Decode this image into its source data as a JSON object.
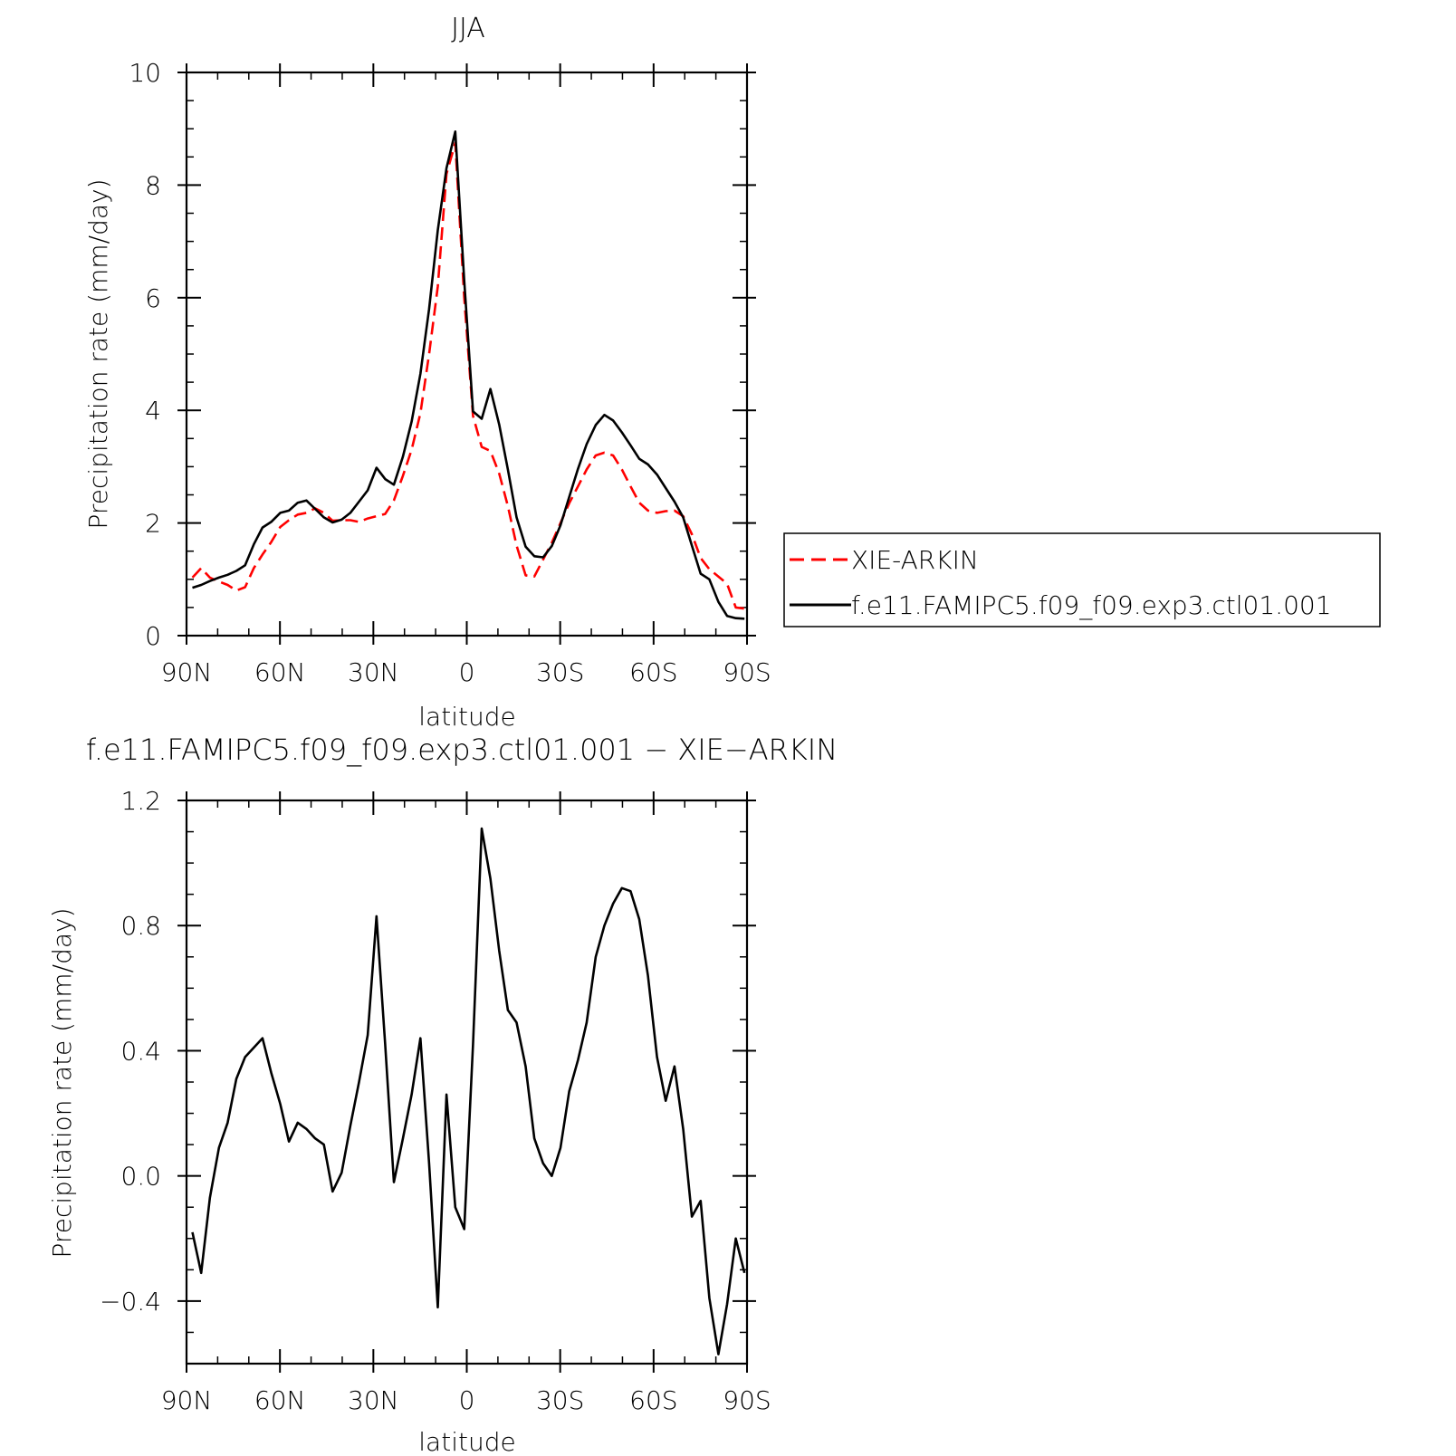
{
  "chart_data": [
    {
      "type": "line",
      "title": "JJA",
      "xlabel": "latitude",
      "ylabel": "Precipitation rate (mm/day)",
      "x_tick_labels": [
        "90N",
        "60N",
        "30N",
        "0",
        "30S",
        "60S",
        "90S"
      ],
      "x_ticks": [
        90,
        60,
        30,
        0,
        -30,
        -60,
        -90
      ],
      "xlim": [
        90,
        -90
      ],
      "y_tick_labels": [
        "0",
        "2",
        "4",
        "6",
        "8",
        "10"
      ],
      "y_ticks": [
        0,
        2,
        4,
        6,
        8,
        10
      ],
      "ylim": [
        0,
        10
      ],
      "grid": false,
      "legend_position": "right",
      "x": [
        88.1,
        85.3,
        82.5,
        79.6,
        76.8,
        74.0,
        71.2,
        68.4,
        65.6,
        62.8,
        59.9,
        57.1,
        54.3,
        51.5,
        48.7,
        45.9,
        43.1,
        40.2,
        37.4,
        34.6,
        31.8,
        29.0,
        26.2,
        23.4,
        20.5,
        17.7,
        14.9,
        12.1,
        9.3,
        6.5,
        3.7,
        0.8,
        -2.0,
        -4.8,
        -7.6,
        -10.4,
        -13.2,
        -16.0,
        -18.9,
        -21.7,
        -24.5,
        -27.3,
        -30.1,
        -32.9,
        -35.7,
        -38.5,
        -41.4,
        -44.2,
        -47.0,
        -49.8,
        -52.6,
        -55.4,
        -58.2,
        -61.1,
        -63.9,
        -66.7,
        -69.5,
        -72.3,
        -75.1,
        -77.9,
        -80.8,
        -83.6,
        -86.4,
        -89.2
      ],
      "series": [
        {
          "name": "XIE-ARKIN",
          "color": "#ff0000",
          "dash": "dashed",
          "values": [
            1.03,
            1.2,
            1.03,
            0.96,
            0.9,
            0.8,
            0.86,
            1.2,
            1.44,
            1.66,
            1.93,
            2.05,
            2.15,
            2.18,
            2.26,
            2.18,
            2.04,
            2.05,
            2.05,
            2.02,
            2.08,
            2.12,
            2.16,
            2.4,
            2.84,
            3.3,
            3.95,
            5.0,
            6.2,
            8.2,
            8.75,
            6.0,
            3.9,
            3.35,
            3.28,
            2.88,
            2.3,
            1.6,
            1.07,
            1.05,
            1.35,
            1.65,
            2.0,
            2.35,
            2.65,
            2.95,
            3.2,
            3.25,
            3.2,
            2.95,
            2.65,
            2.36,
            2.22,
            2.18,
            2.21,
            2.22,
            2.12,
            1.8,
            1.38,
            1.18,
            1.05,
            0.92,
            0.5,
            0.48
          ]
        },
        {
          "name": "f.e11.FAMIPC5.f09_f09.exp3.ctl01.001",
          "color": "#000000",
          "dash": "solid",
          "values": [
            0.85,
            0.9,
            0.97,
            1.03,
            1.08,
            1.15,
            1.25,
            1.62,
            1.92,
            2.02,
            2.18,
            2.22,
            2.36,
            2.4,
            2.25,
            2.1,
            2.01,
            2.06,
            2.18,
            2.38,
            2.58,
            2.98,
            2.78,
            2.68,
            3.18,
            3.8,
            4.65,
            5.8,
            7.2,
            8.3,
            8.95,
            6.3,
            3.98,
            3.85,
            4.38,
            3.75,
            2.95,
            2.1,
            1.58,
            1.41,
            1.39,
            1.59,
            1.96,
            2.46,
            2.96,
            3.4,
            3.74,
            3.92,
            3.82,
            3.61,
            3.38,
            3.14,
            3.04,
            2.86,
            2.62,
            2.38,
            2.1,
            1.6,
            1.1,
            1.0,
            0.6,
            0.35,
            0.31,
            0.3
          ]
        }
      ]
    },
    {
      "type": "line",
      "title": "f.e11.FAMIPC5.f09_f09.exp3.ctl01.001 − XIE−ARKIN",
      "xlabel": "latitude",
      "ylabel": "Precipitation rate (mm/day)",
      "x_tick_labels": [
        "90N",
        "60N",
        "30N",
        "0",
        "30S",
        "60S",
        "90S"
      ],
      "x_ticks": [
        90,
        60,
        30,
        0,
        -30,
        -60,
        -90
      ],
      "xlim": [
        90,
        -90
      ],
      "y_tick_labels": [
        "−0.4",
        "0.0",
        "0.4",
        "0.8",
        "1.2"
      ],
      "y_ticks": [
        -0.4,
        0.0,
        0.4,
        0.8,
        1.2
      ],
      "ylim": [
        -0.6,
        1.2
      ],
      "grid": false,
      "x": [
        88.1,
        85.3,
        82.5,
        79.6,
        76.8,
        74.0,
        71.2,
        68.4,
        65.6,
        62.8,
        59.9,
        57.1,
        54.3,
        51.5,
        48.7,
        45.9,
        43.1,
        40.2,
        37.4,
        34.6,
        31.8,
        29.0,
        26.2,
        23.4,
        20.5,
        17.7,
        14.9,
        12.1,
        9.3,
        6.5,
        3.7,
        0.8,
        -2.0,
        -4.8,
        -7.6,
        -10.4,
        -13.2,
        -16.0,
        -18.9,
        -21.7,
        -24.5,
        -27.3,
        -30.1,
        -32.9,
        -35.7,
        -38.5,
        -41.4,
        -44.2,
        -47.0,
        -49.8,
        -52.6,
        -55.4,
        -58.2,
        -61.1,
        -63.9,
        -66.7,
        -69.5,
        -72.3,
        -75.1,
        -77.9,
        -80.8,
        -83.6,
        -86.4,
        -89.2
      ],
      "series": [
        {
          "color": "#000000",
          "dash": "solid",
          "values": [
            -0.18,
            -0.31,
            -0.07,
            0.09,
            0.17,
            0.31,
            0.38,
            0.41,
            0.44,
            0.33,
            0.23,
            0.11,
            0.17,
            0.15,
            0.12,
            0.1,
            -0.05,
            0.01,
            0.16,
            0.3,
            0.45,
            0.83,
            0.42,
            -0.02,
            0.12,
            0.26,
            0.44,
            0.04,
            -0.42,
            0.26,
            -0.1,
            -0.17,
            0.42,
            1.11,
            0.95,
            0.72,
            0.53,
            0.49,
            0.35,
            0.12,
            0.04,
            0.0,
            0.09,
            0.27,
            0.37,
            0.49,
            0.7,
            0.8,
            0.87,
            0.92,
            0.91,
            0.82,
            0.64,
            0.38,
            0.24,
            0.35,
            0.15,
            -0.13,
            -0.08,
            -0.39,
            -0.57,
            -0.41,
            -0.2,
            -0.31
          ]
        }
      ]
    }
  ]
}
